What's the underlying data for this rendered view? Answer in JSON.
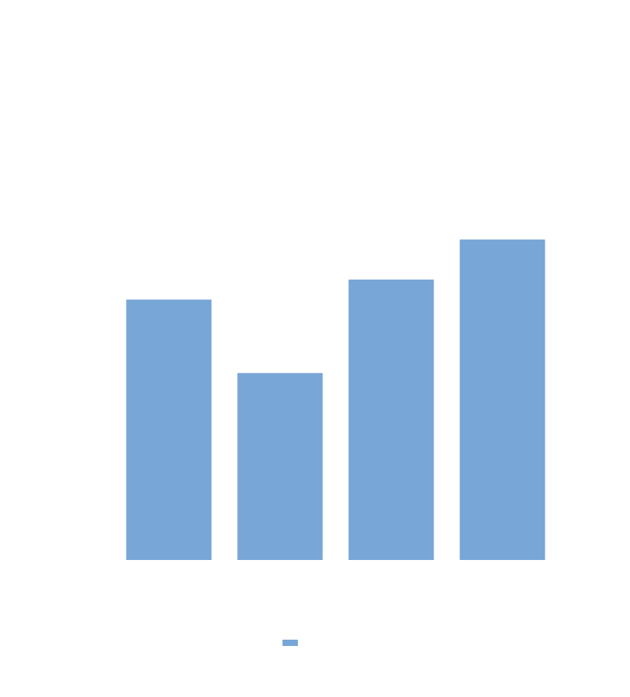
{
  "chart_data": {
    "type": "bar",
    "categories": [
      null,
      null,
      null,
      null
    ],
    "values": [
      3.9,
      2.8,
      4.2,
      4.8
    ],
    "color": "#78a6d7",
    "ylim": [
      0,
      6
    ],
    "grid": false,
    "legend": "bottom"
  }
}
